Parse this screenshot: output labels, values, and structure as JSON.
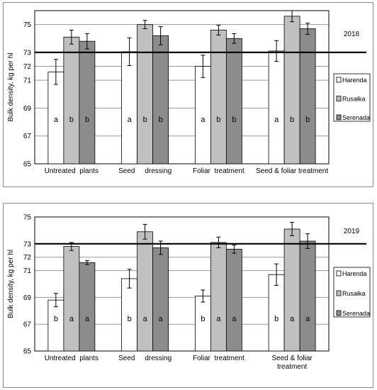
{
  "colors": {
    "frame": "#8a8a8a",
    "plot_frame": "#000000",
    "gridline": "#9a9a9a",
    "reference_line": "#000000",
    "error_bar": "#000000"
  },
  "chart_data": [
    {
      "type": "bar",
      "year_label": "2018",
      "ylabel": "Bulk density, kg per hl",
      "ylim": [
        65,
        76
      ],
      "yticks": [
        65,
        67,
        69,
        71,
        72,
        73,
        75
      ],
      "grid": true,
      "legend_position": "right",
      "reference_line": 73,
      "categories": [
        "Untreated  plants",
        "Seed     dressing",
        "Foliar  treatment",
        "Seed & foliar treatment"
      ],
      "series": [
        {
          "name": "Harenda",
          "color": "#ffffff",
          "values": [
            71.6,
            73.05,
            72.0,
            73.1
          ],
          "errors": [
            0.9,
            1.0,
            0.8,
            0.75
          ],
          "letters": [
            "a",
            "a",
            "a",
            "a"
          ]
        },
        {
          "name": "Rusałka",
          "color": "#c0c0c0",
          "values": [
            74.1,
            75.0,
            74.6,
            75.6
          ],
          "errors": [
            0.5,
            0.3,
            0.35,
            0.4
          ],
          "letters": [
            "b",
            "b",
            "b",
            "b"
          ]
        },
        {
          "name": "Serenada",
          "color": "#8c8c8c",
          "values": [
            73.8,
            74.2,
            74.0,
            74.7
          ],
          "errors": [
            0.55,
            0.65,
            0.35,
            0.4
          ],
          "letters": [
            "b",
            "b",
            "b",
            "b"
          ]
        }
      ]
    },
    {
      "type": "bar",
      "year_label": "2019",
      "ylabel": "Bulk density, kg per hl",
      "ylim": [
        65,
        75
      ],
      "yticks": [
        65,
        67,
        69,
        71,
        72,
        73,
        75
      ],
      "grid": true,
      "legend_position": "right",
      "reference_line": 73,
      "categories": [
        "Untreated  plants",
        "Seed     dressing",
        "Foliar  treatment",
        "Seed & foliar treatment"
      ],
      "series": [
        {
          "name": "Harenda",
          "color": "#ffffff",
          "values": [
            68.8,
            70.4,
            69.1,
            70.7
          ],
          "errors": [
            0.5,
            0.7,
            0.45,
            0.8
          ],
          "letters": [
            "b",
            "b",
            "b",
            "b"
          ]
        },
        {
          "name": "Rusałka",
          "color": "#c0c0c0",
          "values": [
            72.8,
            73.9,
            73.1,
            74.1
          ],
          "errors": [
            0.3,
            0.55,
            0.4,
            0.5
          ],
          "letters": [
            "a",
            "a",
            "a",
            "a"
          ]
        },
        {
          "name": "Serenada",
          "color": "#8c8c8c",
          "values": [
            71.6,
            72.7,
            72.6,
            73.2
          ],
          "errors": [
            0.15,
            0.5,
            0.3,
            0.55
          ],
          "letters": [
            "a",
            "a",
            "a",
            "a"
          ]
        }
      ]
    }
  ]
}
